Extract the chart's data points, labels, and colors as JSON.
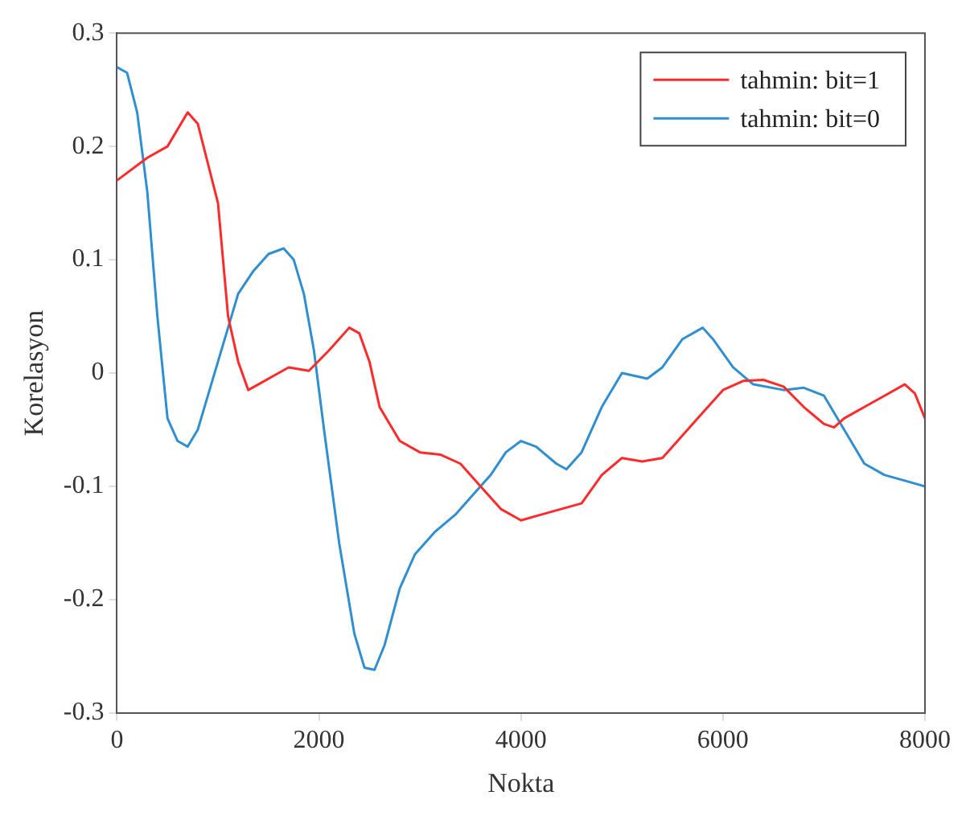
{
  "chart_data": {
    "type": "line",
    "xlabel": "Nokta",
    "ylabel": "Korelasyon",
    "xlim": [
      0,
      8000
    ],
    "xticks": [
      0,
      2000,
      4000,
      6000,
      8000
    ],
    "ylim": [
      -0.3,
      0.3
    ],
    "yticks": [
      -0.3,
      -0.2,
      -0.1,
      0,
      0.1,
      0.2,
      0.3
    ],
    "grid": false,
    "legend": "top right",
    "marker": "none",
    "line_style": "solid",
    "series": [
      {
        "name": "tahmin: bit=1",
        "color": "#ff2a2a",
        "x": [
          0,
          300,
          500,
          700,
          800,
          1000,
          1100,
          1200,
          1300,
          1400,
          1600,
          1700,
          1900,
          2100,
          2300,
          2400,
          2500,
          2600,
          2800,
          3000,
          3200,
          3400,
          3600,
          3800,
          4000,
          4200,
          4400,
          4600,
          4800,
          5000,
          5200,
          5400,
          5600,
          5800,
          6000,
          6200,
          6400,
          6600,
          6800,
          7000,
          7100,
          7200,
          7400,
          7600,
          7800,
          7900,
          8000
        ],
        "values": [
          0.17,
          0.19,
          0.2,
          0.23,
          0.22,
          0.15,
          0.05,
          0.01,
          -0.015,
          -0.01,
          0,
          0.005,
          0.002,
          0.02,
          0.04,
          0.035,
          0.01,
          -0.03,
          -0.06,
          -0.07,
          -0.072,
          -0.08,
          -0.1,
          -0.12,
          -0.13,
          -0.125,
          -0.12,
          -0.115,
          -0.09,
          -0.075,
          -0.078,
          -0.075,
          -0.055,
          -0.035,
          -0.015,
          -0.007,
          -0.006,
          -0.012,
          -0.03,
          -0.045,
          -0.048,
          -0.04,
          -0.03,
          -0.02,
          -0.01,
          -0.018,
          -0.04
        ]
      },
      {
        "name": "tahmin: bit=0",
        "color": "#2f8fd0",
        "x": [
          0,
          100,
          200,
          300,
          400,
          500,
          600,
          700,
          800,
          900,
          1000,
          1100,
          1200,
          1350,
          1500,
          1650,
          1750,
          1850,
          1950,
          2050,
          2200,
          2350,
          2450,
          2550,
          2650,
          2800,
          2950,
          3150,
          3350,
          3500,
          3700,
          3850,
          4000,
          4150,
          4350,
          4450,
          4600,
          4800,
          5000,
          5250,
          5400,
          5600,
          5800,
          5900,
          6100,
          6300,
          6600,
          6800,
          7000,
          7200,
          7400,
          7600,
          7800,
          8000
        ],
        "values": [
          0.27,
          0.265,
          0.23,
          0.16,
          0.05,
          -0.04,
          -0.06,
          -0.065,
          -0.05,
          -0.02,
          0.01,
          0.04,
          0.07,
          0.09,
          0.105,
          0.11,
          0.1,
          0.07,
          0.02,
          -0.05,
          -0.15,
          -0.23,
          -0.26,
          -0.262,
          -0.24,
          -0.19,
          -0.16,
          -0.14,
          -0.125,
          -0.11,
          -0.09,
          -0.07,
          -0.06,
          -0.065,
          -0.08,
          -0.085,
          -0.07,
          -0.03,
          0,
          -0.005,
          0.005,
          0.03,
          0.04,
          0.03,
          0.005,
          -0.01,
          -0.015,
          -0.013,
          -0.02,
          -0.05,
          -0.08,
          -0.09,
          -0.095,
          -0.1
        ]
      }
    ]
  }
}
